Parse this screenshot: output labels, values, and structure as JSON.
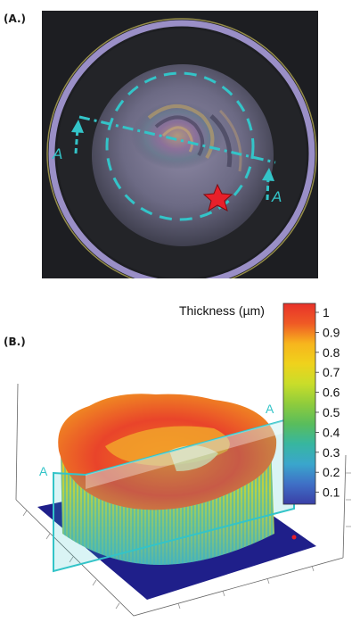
{
  "panels": {
    "a": {
      "label": "(A.)",
      "section_marks": [
        "A",
        "A"
      ]
    },
    "b": {
      "label": "(B.)",
      "section_marks": [
        "A",
        "A"
      ]
    }
  },
  "colorbar": {
    "title": "Thickness (µm)",
    "ticks": [
      "1",
      "0.9",
      "0.8",
      "0.7",
      "0.6",
      "0.5",
      "0.4",
      "0.3",
      "0.2",
      "0.1"
    ],
    "stops": [
      "#e8322a",
      "#ef5a25",
      "#f5891f",
      "#f7b51d",
      "#efd21c",
      "#c9dd2a",
      "#8fcc3c",
      "#59bd5c",
      "#37b6a0",
      "#3aa6cc",
      "#3f6fc6",
      "#3a3fa6"
    ]
  },
  "colors": {
    "dashed_outline": "#33c4c8",
    "star": "#e8202a",
    "base_plate": "#1f1f8a"
  }
}
